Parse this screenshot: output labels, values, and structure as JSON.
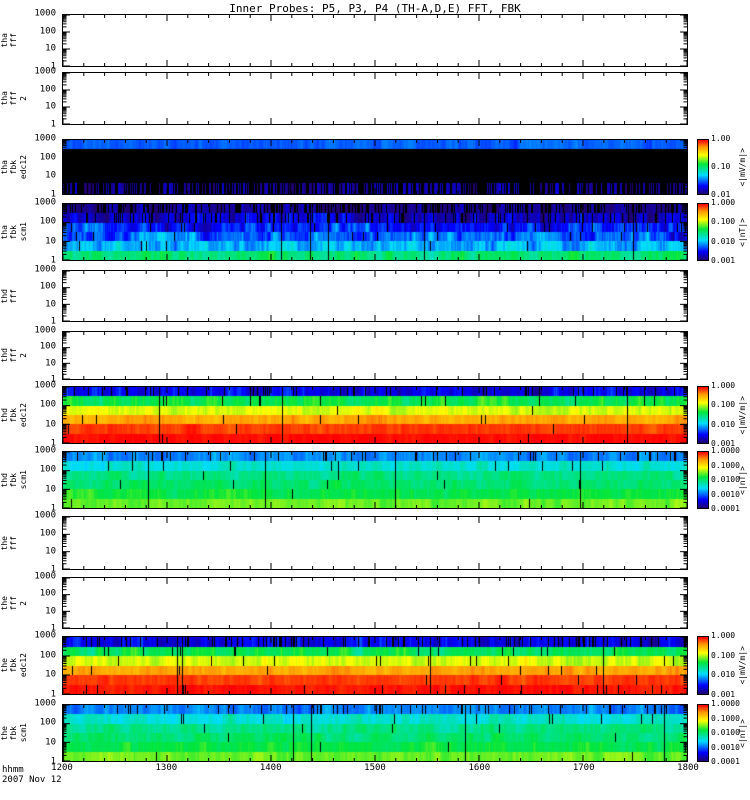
{
  "title": "Inner Probes: P5, P3, P4 (TH-A,D,E) FFT, FBK",
  "footer": {
    "xlabel": "hhmm",
    "date": "2007 Nov 12"
  },
  "chart_data": {
    "type": "heatmap",
    "description": "Stack of 12 time panels: THEMIS inner probes (P5,P3,P4 = TH-A,D,E) FFT panels (empty) and filter-bank FBK spectrograms, 1200-1800 UT",
    "x": {
      "label": "hhmm",
      "date": "2007 Nov 12",
      "range": [
        1200,
        1800
      ],
      "ticks": [
        "1200",
        "1300",
        "1400",
        "1500",
        "1600",
        "1700",
        "1800"
      ]
    },
    "y": {
      "scale": "log",
      "range": [
        1,
        1000
      ],
      "ticks": [
        "1000",
        "100",
        "10",
        "1"
      ]
    },
    "colormap": "rainbow (low=dark blue/violet, high=red, missing=black)",
    "panels": [
      {
        "id": "tha-fff",
        "label": [
          "tha",
          "fff"
        ],
        "type": "empty"
      },
      {
        "id": "tha-fff-2",
        "label": [
          "tha",
          "fff",
          "2"
        ],
        "type": "empty"
      },
      {
        "id": "tha-fbk-edc12",
        "label": [
          "tha",
          "fbk",
          "edc12"
        ],
        "type": "spectrogram",
        "unit": "<|mV/m|>",
        "clim": [
          0.01,
          1.0
        ],
        "cticks": [
          "1.00",
          "0.10",
          "0.01"
        ],
        "bands": [
          {
            "f": [
              0,
              0.167
            ],
            "v": 0.03,
            "n": 0.1,
            "drop": 0
          },
          {
            "f": [
              0.167,
              0.8
            ],
            "v": 0,
            "n": 0,
            "drop": 0
          },
          {
            "f": [
              0.8,
              1
            ],
            "v": 0.013,
            "n": 0.22,
            "drop": 0.55
          }
        ],
        "gap": 0
      },
      {
        "id": "tha-fbk-scm1",
        "label": [
          "tha",
          "fbk",
          "scm1"
        ],
        "type": "spectrogram",
        "unit": "<|nT|>",
        "clim": [
          0.001,
          1.0
        ],
        "cticks": [
          "1.000",
          "0.100",
          "0.010",
          "0.001"
        ],
        "bands": [
          {
            "f": [
              0,
              0.167
            ],
            "v": 0.0013,
            "n": 0.3,
            "drop": 0.35
          },
          {
            "f": [
              0.167,
              0.333
            ],
            "v": 0.002,
            "n": 0.45,
            "drop": 0.15
          },
          {
            "f": [
              0.333,
              0.5
            ],
            "v": 0.0035,
            "n": 0.5,
            "drop": 0.05
          },
          {
            "f": [
              0.5,
              0.667
            ],
            "v": 0.005,
            "n": 0.5,
            "drop": 0.02
          },
          {
            "f": [
              0.667,
              0.834
            ],
            "v": 0.009,
            "n": 0.4,
            "drop": 0.01
          },
          {
            "f": [
              0.834,
              1
            ],
            "v": 0.03,
            "n": 0.3,
            "drop": 0
          }
        ],
        "gap": 0.004
      },
      {
        "id": "thd-fff",
        "label": [
          "thd",
          "fff"
        ],
        "type": "empty"
      },
      {
        "id": "thd-fff-2",
        "label": [
          "thd",
          "fff",
          "2"
        ],
        "type": "empty"
      },
      {
        "id": "thd-fbk-edc12",
        "label": [
          "thd",
          "fbk",
          "edc12"
        ],
        "type": "spectrogram",
        "unit": "<|mV/m|>",
        "clim": [
          0.001,
          1.0
        ],
        "cticks": [
          "1.000",
          "0.100",
          "0.010",
          "0.001"
        ],
        "bands": [
          {
            "f": [
              0,
              0.167
            ],
            "v": 0.0025,
            "n": 0.35,
            "drop": 0.07
          },
          {
            "f": [
              0.167,
              0.333
            ],
            "v": 0.04,
            "n": 0.3,
            "drop": 0.02
          },
          {
            "f": [
              0.333,
              0.5
            ],
            "v": 0.12,
            "n": 0.22,
            "drop": 0.01
          },
          {
            "f": [
              0.5,
              0.667
            ],
            "v": 0.35,
            "n": 0.18,
            "drop": 0.005
          },
          {
            "f": [
              0.667,
              0.834
            ],
            "v": 0.7,
            "n": 0.12,
            "drop": 0.004
          },
          {
            "f": [
              0.834,
              1
            ],
            "v": 0.95,
            "n": 0.08,
            "drop": 0.004
          }
        ],
        "gap": 0.005
      },
      {
        "id": "thd-fbk-scm1",
        "label": [
          "thd",
          "fbk",
          "scm1"
        ],
        "type": "spectrogram",
        "unit": "<|nT|>",
        "clim": [
          0.0001,
          1.0
        ],
        "cticks": [
          "1.0000",
          "0.1000",
          "0.0100",
          "0.0010",
          "0.0001"
        ],
        "bands": [
          {
            "f": [
              0,
              0.167
            ],
            "v": 0.0012,
            "n": 0.28,
            "drop": 0.06
          },
          {
            "f": [
              0.167,
              0.333
            ],
            "v": 0.004,
            "n": 0.3,
            "drop": 0.02
          },
          {
            "f": [
              0.333,
              0.5
            ],
            "v": 0.008,
            "n": 0.3,
            "drop": 0.006
          },
          {
            "f": [
              0.5,
              0.667
            ],
            "v": 0.01,
            "n": 0.3,
            "drop": 0.003
          },
          {
            "f": [
              0.667,
              0.834
            ],
            "v": 0.015,
            "n": 0.28,
            "drop": 0.003
          },
          {
            "f": [
              0.834,
              1
            ],
            "v": 0.03,
            "n": 0.22,
            "drop": 0.003
          }
        ],
        "gap": 0.005
      },
      {
        "id": "the-fff",
        "label": [
          "the",
          "fff"
        ],
        "type": "empty"
      },
      {
        "id": "the-fff-2",
        "label": [
          "the",
          "fff",
          "2"
        ],
        "type": "empty"
      },
      {
        "id": "the-fbk-edc12",
        "label": [
          "the",
          "fbk",
          "edc12"
        ],
        "type": "spectrogram",
        "unit": "<|mV/m|>",
        "clim": [
          0.001,
          1.0
        ],
        "cticks": [
          "1.000",
          "0.100",
          "0.010",
          "0.001"
        ],
        "bands": [
          {
            "f": [
              0,
              0.167
            ],
            "v": 0.0025,
            "n": 0.35,
            "drop": 0.1
          },
          {
            "f": [
              0.167,
              0.333
            ],
            "v": 0.04,
            "n": 0.3,
            "drop": 0.02
          },
          {
            "f": [
              0.333,
              0.5
            ],
            "v": 0.12,
            "n": 0.22,
            "drop": 0.01
          },
          {
            "f": [
              0.5,
              0.667
            ],
            "v": 0.35,
            "n": 0.18,
            "drop": 0.005
          },
          {
            "f": [
              0.667,
              0.834
            ],
            "v": 0.7,
            "n": 0.12,
            "drop": 0.004
          },
          {
            "f": [
              0.834,
              1
            ],
            "v": 0.9,
            "n": 0.1,
            "drop": 0.02
          }
        ],
        "gap": 0.006
      },
      {
        "id": "the-fbk-scm1",
        "label": [
          "the",
          "fbk",
          "scm1"
        ],
        "type": "spectrogram",
        "unit": "<|nT|>",
        "clim": [
          0.0001,
          1.0
        ],
        "cticks": [
          "1.0000",
          "0.1000",
          "0.0100",
          "0.0010",
          "0.0001"
        ],
        "bands": [
          {
            "f": [
              0,
              0.167
            ],
            "v": 0.0012,
            "n": 0.28,
            "drop": 0.08
          },
          {
            "f": [
              0.167,
              0.333
            ],
            "v": 0.004,
            "n": 0.3,
            "drop": 0.02
          },
          {
            "f": [
              0.333,
              0.5
            ],
            "v": 0.008,
            "n": 0.3,
            "drop": 0.006
          },
          {
            "f": [
              0.5,
              0.667
            ],
            "v": 0.01,
            "n": 0.3,
            "drop": 0.003
          },
          {
            "f": [
              0.667,
              0.834
            ],
            "v": 0.015,
            "n": 0.28,
            "drop": 0.003
          },
          {
            "f": [
              0.834,
              1
            ],
            "v": 0.03,
            "n": 0.22,
            "drop": 0.003
          }
        ],
        "gap": 0.005
      }
    ]
  }
}
